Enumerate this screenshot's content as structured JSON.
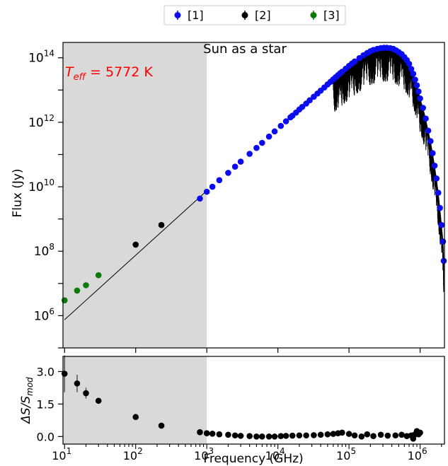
{
  "legend": {
    "items": [
      {
        "label": "[1]",
        "color": "#0b0bf0"
      },
      {
        "label": "[2]",
        "color": "#000000"
      },
      {
        "label": "[3]",
        "color": "#0a7a0a"
      }
    ]
  },
  "chart_data": [
    {
      "type": "scatter",
      "title": "Sun as a star",
      "annotation": "T_eff = 5772 K",
      "annotation_parts": {
        "symbol": "T",
        "subscript": "eff",
        "rest": " = 5772 K"
      },
      "annotation_color": "#ff0000",
      "xlabel": "Frequency (GHz)",
      "ylabel": "Flux (Jy)",
      "xscale": "log",
      "yscale": "log",
      "xlim": [
        9.5,
        2200000
      ],
      "ylim": [
        100000,
        300000000000000
      ],
      "yticks": [
        {
          "base": "10",
          "exp": "6",
          "value": 1000000
        },
        {
          "base": "10",
          "exp": "8",
          "value": 100000000
        },
        {
          "base": "10",
          "exp": "10",
          "value": 10000000000
        },
        {
          "base": "10",
          "exp": "12",
          "value": 1000000000000
        },
        {
          "base": "10",
          "exp": "14",
          "value": 100000000000000
        }
      ],
      "shaded_region": {
        "x_from": 9.5,
        "x_to": 1000,
        "color": "#d9d9d9"
      },
      "series": [
        {
          "name": "[1]",
          "color": "#0b0bf0",
          "points": [
            [
              800,
              4300000000.0
            ],
            [
              1000,
              7000000000.0
            ],
            [
              1200,
              10000000000.0
            ],
            [
              1500,
              16000000000.0
            ],
            [
              2000,
              27000000000.0
            ],
            [
              2500,
              42000000000.0
            ],
            [
              3000,
              60000000000.0
            ],
            [
              4000,
              105000000000.0
            ],
            [
              5000,
              160000000000.0
            ],
            [
              6000,
              230000000000.0
            ],
            [
              7500,
              360000000000.0
            ],
            [
              9000,
              520000000000.0
            ],
            [
              11000,
              770000000000.0
            ],
            [
              13000,
              1070000000000.0
            ],
            [
              15000,
              1420000000000.0
            ],
            [
              16000,
              1600000000000.0
            ],
            [
              18000,
              2000000000000.0
            ],
            [
              20000,
              2500000000000.0
            ],
            [
              22000,
              3000000000000.0
            ],
            [
              25000,
              3800000000000.0
            ],
            [
              28000,
              4800000000000.0
            ],
            [
              32000,
              6200000000000.0
            ],
            [
              36000,
              7800000000000.0
            ],
            [
              40000,
              9600000000000.0
            ],
            [
              45000,
              12000000000000.0
            ],
            [
              50000,
              15000000000000.0
            ],
            [
              55000,
              18000000000000.0
            ],
            [
              60000,
              21500000000000.0
            ],
            [
              65000,
              25000000000000.0
            ],
            [
              70000,
              29000000000000.0
            ],
            [
              75000,
              33000000000000.0
            ],
            [
              80000,
              37000000000000.0
            ],
            [
              90000,
              46000000000000.0
            ],
            [
              100000,
              56000000000000.0
            ],
            [
              110000,
              66000000000000.0
            ],
            [
              120000,
              77000000000000.0
            ],
            [
              140000,
              98000000000000.0
            ],
            [
              160000,
              120000000000000.0
            ],
            [
              180000,
              140000000000000.0
            ],
            [
              200000,
              160000000000000.0
            ],
            [
              220000,
              175000000000000.0
            ],
            [
              250000,
              190000000000000.0
            ],
            [
              280000,
              200000000000000.0
            ],
            [
              310000,
              205000000000000.0
            ],
            [
              340000,
              205000000000000.0
            ],
            [
              380000,
              200000000000000.0
            ],
            [
              420000,
              190000000000000.0
            ],
            [
              460000,
              170000000000000.0
            ],
            [
              500000,
              150000000000000.0
            ],
            [
              550000,
              130000000000000.0
            ],
            [
              600000,
              105000000000000.0
            ],
            [
              650000,
              85000000000000.0
            ],
            [
              700000,
              65000000000000.0
            ],
            [
              750000,
              45000000000000.0
            ],
            [
              800000,
              32000000000000.0
            ],
            [
              850000,
              21000000000000.0
            ],
            [
              900000,
              14000000000000.0
            ],
            [
              950000,
              9000000000000.0
            ],
            [
              1000000,
              5500000000000.0
            ],
            [
              1100000,
              2800000000000.0
            ],
            [
              1200000,
              1300000000000.0
            ],
            [
              1300000,
              550000000000.0
            ],
            [
              1400000,
              260000000000.0
            ],
            [
              1500000,
              110000000000.0
            ],
            [
              1600000,
              45000000000.0
            ],
            [
              1700000,
              18000000000.0
            ],
            [
              1800000,
              6500000000.0
            ],
            [
              1900000,
              2200000000.0
            ],
            [
              2000000,
              650000000.0
            ],
            [
              2100000,
              200000000.0
            ],
            [
              2150000,
              50000000.0
            ]
          ]
        },
        {
          "name": "[2]",
          "color": "#000000",
          "points": [
            [
              100,
              160000000.0
            ],
            [
              230,
              650000000.0
            ]
          ]
        },
        {
          "name": "[3]",
          "color": "#0a7a0a",
          "points": [
            [
              10,
              3000000.0
            ],
            [
              15,
              6000000.0
            ],
            [
              20,
              8800000.0
            ],
            [
              30,
              18000000.0
            ]
          ]
        }
      ],
      "model_line": {
        "description": "power law",
        "points": [
          [
            10,
            750000.0
          ],
          [
            1000,
            7500000000.0
          ]
        ]
      }
    },
    {
      "type": "scatter",
      "title": "",
      "xlabel": "Frequency (GHz)",
      "ylabel_parts": {
        "prefix": "ΔS/S",
        "subscript": "mod"
      },
      "xscale": "log",
      "xlim": [
        9.5,
        2200000
      ],
      "ylim": [
        -0.35,
        3.7
      ],
      "yticks": [
        "0.0",
        "1.5",
        "3.0"
      ],
      "yticks_values": [
        0.0,
        1.5,
        3.0
      ],
      "xticks": [
        {
          "base": "10",
          "exp": "1",
          "value": 10
        },
        {
          "base": "10",
          "exp": "2",
          "value": 100
        },
        {
          "base": "10",
          "exp": "3",
          "value": 1000
        },
        {
          "base": "10",
          "exp": "4",
          "value": 10000
        },
        {
          "base": "10",
          "exp": "5",
          "value": 100000
        },
        {
          "base": "10",
          "exp": "6",
          "value": 1000000
        }
      ],
      "shaded_region": {
        "x_from": 9.5,
        "x_to": 1000,
        "color": "#d9d9d9"
      },
      "series": [
        {
          "name": "residuals",
          "color": "#000000",
          "points": [
            [
              10,
              2.9,
              0.85
            ],
            [
              15,
              2.45,
              0.4
            ],
            [
              20,
              2.0,
              0.25
            ],
            [
              30,
              1.65,
              0.12
            ],
            [
              100,
              0.9,
              0
            ],
            [
              230,
              0.5,
              0
            ],
            [
              800,
              0.2,
              0
            ],
            [
              1000,
              0.15,
              0
            ],
            [
              1200,
              0.13,
              0
            ],
            [
              1500,
              0.1,
              0
            ],
            [
              2000,
              0.08,
              0
            ],
            [
              2500,
              0.05,
              0
            ],
            [
              3000,
              0.03,
              0
            ],
            [
              4000,
              0.02,
              0
            ],
            [
              5000,
              0.0,
              0
            ],
            [
              6000,
              0.0,
              0
            ],
            [
              7500,
              0.0,
              0
            ],
            [
              9000,
              0.0,
              0
            ],
            [
              11000,
              0.02,
              0
            ],
            [
              13000,
              0.03,
              0
            ],
            [
              16000,
              0.04,
              0
            ],
            [
              20000,
              0.05,
              0
            ],
            [
              25000,
              0.05,
              0
            ],
            [
              32000,
              0.06,
              0
            ],
            [
              40000,
              0.08,
              0
            ],
            [
              50000,
              0.1,
              0
            ],
            [
              60000,
              0.12,
              0
            ],
            [
              70000,
              0.15,
              0
            ],
            [
              80000,
              0.18,
              0
            ],
            [
              100000,
              0.12,
              0
            ],
            [
              120000,
              0.05,
              0
            ],
            [
              150000,
              0.0,
              0
            ],
            [
              180000,
              0.1,
              0
            ],
            [
              220000,
              0.02,
              0
            ],
            [
              280000,
              0.08,
              0
            ],
            [
              350000,
              0.04,
              0
            ],
            [
              450000,
              0.05,
              0
            ],
            [
              550000,
              0.08,
              0
            ],
            [
              650000,
              0.02,
              0
            ],
            [
              750000,
              0.05,
              0
            ],
            [
              800000,
              -0.1,
              0
            ],
            [
              850000,
              0.1,
              0
            ],
            [
              900000,
              0.25,
              0
            ],
            [
              950000,
              0.1,
              0
            ],
            [
              1000000,
              0.18,
              0
            ]
          ]
        }
      ]
    }
  ]
}
